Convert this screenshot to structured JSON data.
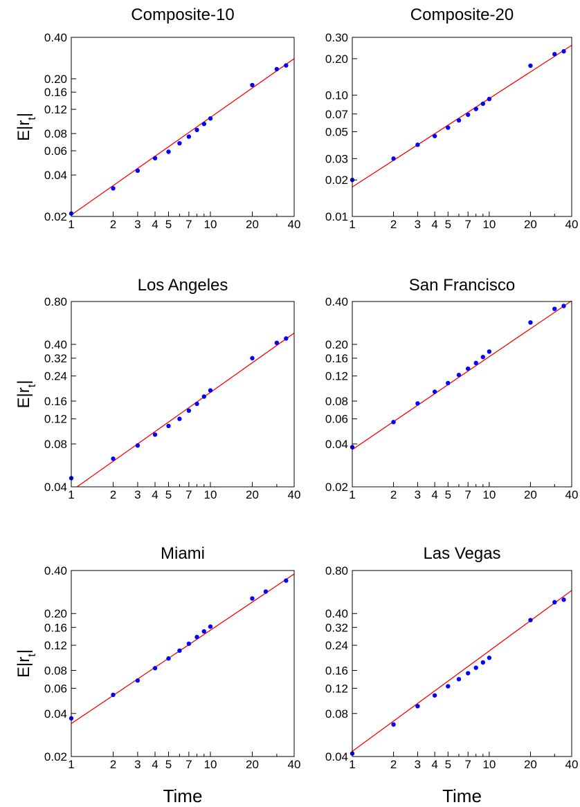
{
  "shared": {
    "xlabel": "Time",
    "ylabel_main": "E|r",
    "ylabel_sub": "t",
    "ylabel_end": "|",
    "x_ticks": [
      1,
      2,
      3,
      4,
      5,
      7,
      10,
      20,
      40
    ],
    "x_scale": "log",
    "y_scale": "log",
    "point_color": "#0000ff",
    "line_color": "#ff0000"
  },
  "chart_data": [
    {
      "type": "scatter",
      "title": "Composite-10",
      "xlim": [
        1,
        40
      ],
      "ylim": [
        0.02,
        0.4
      ],
      "y_ticks": [
        "0.02",
        "0.04",
        "0.06",
        "0.08",
        "0.12",
        "0.16",
        "0.20",
        "0.40"
      ],
      "show_ylabel": true,
      "show_xlabel": false,
      "points": [
        [
          1,
          0.021
        ],
        [
          2,
          0.032
        ],
        [
          3,
          0.043
        ],
        [
          4,
          0.053
        ],
        [
          5,
          0.059
        ],
        [
          6,
          0.068
        ],
        [
          7,
          0.076
        ],
        [
          8,
          0.085
        ],
        [
          9,
          0.094
        ],
        [
          10,
          0.103
        ],
        [
          20,
          0.18
        ],
        [
          30,
          0.235
        ],
        [
          35,
          0.25
        ]
      ],
      "fit_line": [
        [
          1,
          0.0205
        ],
        [
          40,
          0.28
        ]
      ]
    },
    {
      "type": "scatter",
      "title": "Composite-20",
      "xlim": [
        1,
        40
      ],
      "ylim": [
        0.01,
        0.3
      ],
      "y_ticks": [
        "0.01",
        "0.02",
        "0.03",
        "0.05",
        "0.07",
        "0.10",
        "0.20",
        "0.30"
      ],
      "show_ylabel": false,
      "show_xlabel": false,
      "points": [
        [
          1,
          0.02
        ],
        [
          2,
          0.03
        ],
        [
          3,
          0.039
        ],
        [
          4,
          0.046
        ],
        [
          5,
          0.054
        ],
        [
          6,
          0.062
        ],
        [
          7,
          0.069
        ],
        [
          8,
          0.077
        ],
        [
          9,
          0.085
        ],
        [
          10,
          0.093
        ],
        [
          20,
          0.175
        ],
        [
          30,
          0.218
        ],
        [
          35,
          0.23
        ]
      ],
      "fit_line": [
        [
          1,
          0.0175
        ],
        [
          40,
          0.258
        ]
      ]
    },
    {
      "type": "scatter",
      "title": "Los Angeles",
      "xlim": [
        1,
        40
      ],
      "ylim": [
        0.04,
        0.8
      ],
      "y_ticks": [
        "0.04",
        "0.08",
        "0.12",
        "0.16",
        "0.24",
        "0.32",
        "0.40",
        "0.80"
      ],
      "show_ylabel": true,
      "show_xlabel": false,
      "points": [
        [
          1,
          0.046
        ],
        [
          2,
          0.063
        ],
        [
          3,
          0.078
        ],
        [
          4,
          0.093
        ],
        [
          5,
          0.107
        ],
        [
          6,
          0.12
        ],
        [
          7,
          0.137
        ],
        [
          8,
          0.153
        ],
        [
          9,
          0.172
        ],
        [
          10,
          0.19
        ],
        [
          20,
          0.32
        ],
        [
          30,
          0.41
        ],
        [
          35,
          0.44
        ]
      ],
      "fit_line": [
        [
          1.1,
          0.04
        ],
        [
          40,
          0.48
        ]
      ]
    },
    {
      "type": "scatter",
      "title": "San Francisco",
      "xlim": [
        1,
        40
      ],
      "ylim": [
        0.02,
        0.4
      ],
      "y_ticks": [
        "0.02",
        "0.04",
        "0.06",
        "0.08",
        "0.12",
        "0.16",
        "0.20",
        "0.40"
      ],
      "show_ylabel": false,
      "show_xlabel": false,
      "points": [
        [
          1,
          0.038
        ],
        [
          2,
          0.057
        ],
        [
          3,
          0.077
        ],
        [
          4,
          0.093
        ],
        [
          5,
          0.107
        ],
        [
          6,
          0.122
        ],
        [
          7,
          0.135
        ],
        [
          8,
          0.148
        ],
        [
          9,
          0.163
        ],
        [
          10,
          0.178
        ],
        [
          20,
          0.285
        ],
        [
          30,
          0.355
        ],
        [
          35,
          0.372
        ]
      ],
      "fit_line": [
        [
          1,
          0.0365
        ],
        [
          40,
          0.405
        ]
      ]
    },
    {
      "type": "scatter",
      "title": "Miami",
      "xlim": [
        1,
        40
      ],
      "ylim": [
        0.02,
        0.4
      ],
      "y_ticks": [
        "0.02",
        "0.04",
        "0.06",
        "0.08",
        "0.12",
        "0.16",
        "0.20",
        "0.40"
      ],
      "show_ylabel": true,
      "show_xlabel": true,
      "points": [
        [
          1,
          0.037
        ],
        [
          2,
          0.054
        ],
        [
          3,
          0.068
        ],
        [
          4,
          0.083
        ],
        [
          5,
          0.097
        ],
        [
          6,
          0.11
        ],
        [
          7,
          0.123
        ],
        [
          8,
          0.137
        ],
        [
          9,
          0.15
        ],
        [
          10,
          0.162
        ],
        [
          20,
          0.255
        ],
        [
          25,
          0.285
        ],
        [
          35,
          0.34
        ]
      ],
      "fit_line": [
        [
          1,
          0.034
        ],
        [
          40,
          0.378
        ]
      ]
    },
    {
      "type": "scatter",
      "title": "Las Vegas",
      "xlim": [
        1,
        40
      ],
      "ylim": [
        0.04,
        0.8
      ],
      "y_ticks": [
        "0.04",
        "0.08",
        "0.12",
        "0.16",
        "0.24",
        "0.32",
        "0.40",
        "0.80"
      ],
      "show_ylabel": false,
      "show_xlabel": true,
      "points": [
        [
          1,
          0.042
        ],
        [
          2,
          0.067
        ],
        [
          3,
          0.09
        ],
        [
          4,
          0.107
        ],
        [
          5,
          0.124
        ],
        [
          6,
          0.139
        ],
        [
          7,
          0.153
        ],
        [
          8,
          0.167
        ],
        [
          9,
          0.182
        ],
        [
          10,
          0.196
        ],
        [
          20,
          0.36
        ],
        [
          30,
          0.48
        ],
        [
          35,
          0.5
        ]
      ],
      "fit_line": [
        [
          1,
          0.0435
        ],
        [
          40,
          0.58
        ]
      ]
    }
  ]
}
